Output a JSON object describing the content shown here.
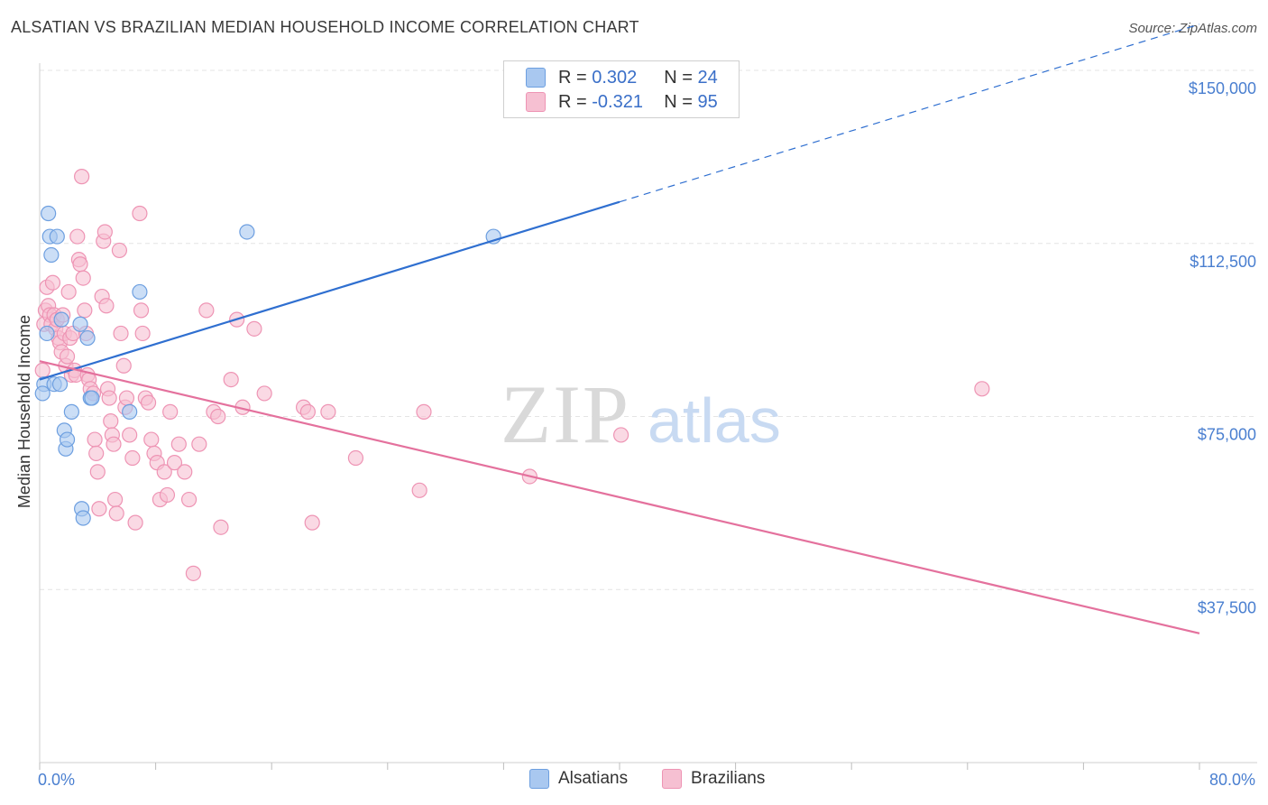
{
  "header": {
    "title": "ALSATIAN VS BRAZILIAN MEDIAN HOUSEHOLD INCOME CORRELATION CHART",
    "source": "Source: ZipAtlas.com"
  },
  "legend": {
    "rows": [
      {
        "r_label": "R =",
        "r_value": "0.302",
        "n_label": "N =",
        "n_value": "24",
        "color": "#a9c8f0",
        "border": "#6d9fe0"
      },
      {
        "r_label": "R =",
        "r_value": "-0.321",
        "n_label": "N =",
        "n_value": "95",
        "color": "#f6c0d2",
        "border": "#ee94b4"
      }
    ]
  },
  "bottom_legend": {
    "alsatians": "Alsatians",
    "brazilians": "Brazilians"
  },
  "watermark": {
    "zip": "ZIP",
    "atlas": "atlas"
  },
  "colors": {
    "blue_fill": "#a9c8f0",
    "blue_stroke": "#6d9fe0",
    "blue_line": "#2f6fd0",
    "pink_fill": "#f6c0d2",
    "pink_stroke": "#ee94b4",
    "pink_line": "#e4719d",
    "axis_text": "#4a7fd0",
    "grid": "#e4e4e4"
  },
  "chart_data": {
    "type": "scatter",
    "title": "ALSATIAN VS BRAZILIAN MEDIAN HOUSEHOLD INCOME CORRELATION CHART",
    "xlabel": "",
    "ylabel": "Median Household Income",
    "xlim": [
      0,
      80
    ],
    "ylim": [
      0,
      150000
    ],
    "x_tick_labels": [
      "0.0%",
      "80.0%"
    ],
    "y_ticks": [
      37500,
      75000,
      112500,
      150000
    ],
    "y_tick_labels": [
      "$37,500",
      "$75,000",
      "$112,500",
      "$150,000"
    ],
    "grid": true,
    "series": [
      {
        "name": "Alsatians",
        "points": [
          [
            0.3,
            82000
          ],
          [
            0.5,
            93000
          ],
          [
            0.6,
            119000
          ],
          [
            0.7,
            114000
          ],
          [
            0.8,
            110000
          ],
          [
            1.0,
            82000
          ],
          [
            1.2,
            114000
          ],
          [
            1.4,
            82000
          ],
          [
            1.5,
            96000
          ],
          [
            1.7,
            72000
          ],
          [
            1.8,
            68000
          ],
          [
            1.9,
            70000
          ],
          [
            2.2,
            76000
          ],
          [
            2.8,
            95000
          ],
          [
            2.9,
            55000
          ],
          [
            3.0,
            53000
          ],
          [
            3.3,
            92000
          ],
          [
            3.5,
            79000
          ],
          [
            3.6,
            79000
          ],
          [
            6.2,
            76000
          ],
          [
            6.9,
            102000
          ],
          [
            14.3,
            115000
          ],
          [
            31.3,
            114000
          ],
          [
            0.2,
            80000
          ]
        ],
        "trend": {
          "x": [
            0,
            40
          ],
          "y": [
            83000,
            121500
          ]
        },
        "trend_dashed": {
          "x": [
            40,
            80
          ],
          "y": [
            121500,
            160000
          ]
        }
      },
      {
        "name": "Brazilians",
        "points": [
          [
            0.2,
            85000
          ],
          [
            0.3,
            95000
          ],
          [
            0.4,
            98000
          ],
          [
            0.5,
            103000
          ],
          [
            0.6,
            99000
          ],
          [
            0.7,
            97000
          ],
          [
            0.8,
            95000
          ],
          [
            0.9,
            104000
          ],
          [
            1.0,
            97000
          ],
          [
            1.1,
            94000
          ],
          [
            1.2,
            96000
          ],
          [
            1.3,
            92000
          ],
          [
            1.4,
            91000
          ],
          [
            1.5,
            89000
          ],
          [
            1.6,
            97000
          ],
          [
            1.7,
            93000
          ],
          [
            1.8,
            86000
          ],
          [
            1.9,
            88000
          ],
          [
            2.0,
            102000
          ],
          [
            2.1,
            92000
          ],
          [
            2.2,
            84000
          ],
          [
            2.3,
            93000
          ],
          [
            2.4,
            85000
          ],
          [
            2.5,
            84000
          ],
          [
            2.6,
            114000
          ],
          [
            2.7,
            109000
          ],
          [
            2.8,
            108000
          ],
          [
            2.9,
            127000
          ],
          [
            3.0,
            105000
          ],
          [
            3.1,
            98000
          ],
          [
            3.2,
            93000
          ],
          [
            3.3,
            84000
          ],
          [
            3.4,
            83000
          ],
          [
            3.5,
            81000
          ],
          [
            3.7,
            80000
          ],
          [
            3.8,
            70000
          ],
          [
            3.9,
            67000
          ],
          [
            4.0,
            63000
          ],
          [
            4.1,
            55000
          ],
          [
            4.3,
            101000
          ],
          [
            4.4,
            113000
          ],
          [
            4.5,
            115000
          ],
          [
            4.6,
            99000
          ],
          [
            4.7,
            81000
          ],
          [
            4.8,
            79000
          ],
          [
            4.9,
            74000
          ],
          [
            5.0,
            71000
          ],
          [
            5.1,
            69000
          ],
          [
            5.2,
            57000
          ],
          [
            5.3,
            54000
          ],
          [
            5.5,
            111000
          ],
          [
            5.6,
            93000
          ],
          [
            5.8,
            86000
          ],
          [
            5.9,
            77000
          ],
          [
            6.0,
            79000
          ],
          [
            6.2,
            71000
          ],
          [
            6.4,
            66000
          ],
          [
            6.6,
            52000
          ],
          [
            6.9,
            119000
          ],
          [
            7.0,
            98000
          ],
          [
            7.1,
            93000
          ],
          [
            7.3,
            79000
          ],
          [
            7.5,
            78000
          ],
          [
            7.7,
            70000
          ],
          [
            7.9,
            67000
          ],
          [
            8.1,
            65000
          ],
          [
            8.3,
            57000
          ],
          [
            8.6,
            63000
          ],
          [
            8.8,
            58000
          ],
          [
            9.0,
            76000
          ],
          [
            9.3,
            65000
          ],
          [
            9.6,
            69000
          ],
          [
            10.0,
            63000
          ],
          [
            10.3,
            57000
          ],
          [
            10.6,
            41000
          ],
          [
            11.0,
            69000
          ],
          [
            11.5,
            98000
          ],
          [
            12.0,
            76000
          ],
          [
            12.3,
            75000
          ],
          [
            12.5,
            51000
          ],
          [
            13.2,
            83000
          ],
          [
            13.6,
            96000
          ],
          [
            14.0,
            77000
          ],
          [
            14.8,
            94000
          ],
          [
            15.5,
            80000
          ],
          [
            18.2,
            77000
          ],
          [
            18.5,
            76000
          ],
          [
            18.8,
            52000
          ],
          [
            19.9,
            76000
          ],
          [
            21.8,
            66000
          ],
          [
            26.2,
            59000
          ],
          [
            26.5,
            76000
          ],
          [
            33.8,
            62000
          ],
          [
            40.1,
            71000
          ],
          [
            65.0,
            81000
          ]
        ],
        "trend": {
          "x": [
            0,
            80
          ],
          "y": [
            87000,
            28000
          ]
        }
      }
    ]
  }
}
